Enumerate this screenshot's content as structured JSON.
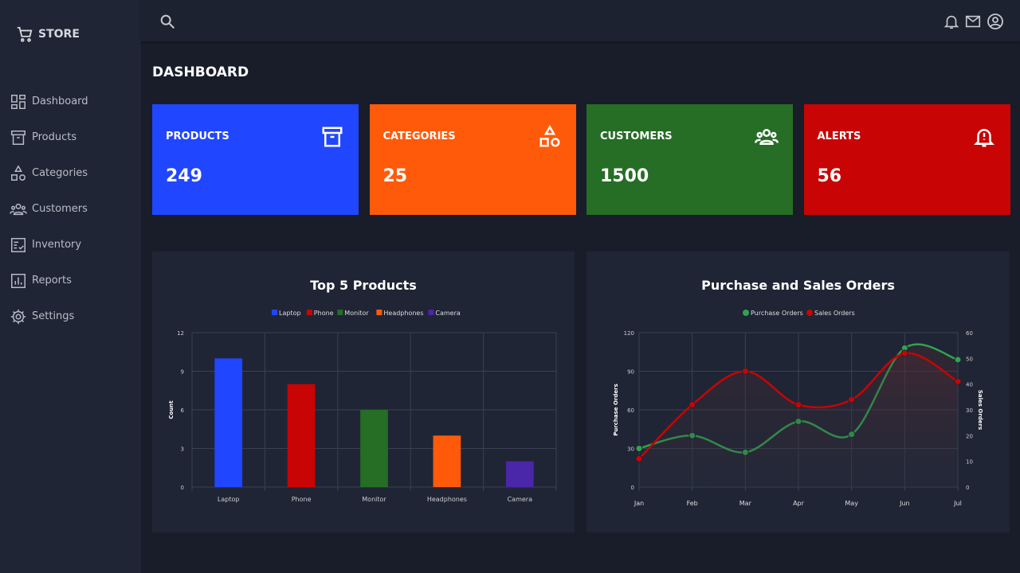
{
  "brand": {
    "name": "STORE",
    "icon": "cart-icon"
  },
  "sidebar": {
    "items": [
      {
        "label": "Dashboard",
        "icon": "dashboard-icon"
      },
      {
        "label": "Products",
        "icon": "archive-icon"
      },
      {
        "label": "Categories",
        "icon": "shapes-icon"
      },
      {
        "label": "Customers",
        "icon": "people-icon"
      },
      {
        "label": "Inventory",
        "icon": "checklist-icon"
      },
      {
        "label": "Reports",
        "icon": "bar-chart-icon"
      },
      {
        "label": "Settings",
        "icon": "gear-icon"
      }
    ]
  },
  "header": {
    "title": "DASHBOARD"
  },
  "cards": [
    {
      "label": "PRODUCTS",
      "value": "249",
      "color": "#2146ff",
      "icon": "archive-icon"
    },
    {
      "label": "CATEGORIES",
      "value": "25",
      "color": "#ff5a0a",
      "icon": "shapes-icon"
    },
    {
      "label": "CUSTOMERS",
      "value": "1500",
      "color": "#266d26",
      "icon": "people-icon"
    },
    {
      "label": "ALERTS",
      "value": "56",
      "color": "#c80404",
      "icon": "bell-alert-icon"
    }
  ],
  "chart_data": [
    {
      "type": "bar",
      "title": "Top 5 Products",
      "ylabel": "Count",
      "categories": [
        "Laptop",
        "Phone",
        "Monitor",
        "Headphones",
        "Camera"
      ],
      "values": [
        10,
        8,
        6,
        4,
        2
      ],
      "colors": [
        "#2146ff",
        "#c80404",
        "#266d26",
        "#ff5a0a",
        "#4a26a8"
      ],
      "ylim": [
        0,
        12
      ],
      "yticks": [
        0,
        3,
        6,
        9,
        12
      ],
      "legend": "top",
      "grid": true
    },
    {
      "type": "line",
      "title": "Purchase and Sales Orders",
      "categories": [
        "Jan",
        "Feb",
        "Mar",
        "Apr",
        "May",
        "Jun",
        "Jul"
      ],
      "series": [
        {
          "name": "Purchase Orders",
          "values": [
            30,
            40,
            27,
            51,
            41,
            108,
            99
          ],
          "color": "#2ea44f",
          "axis": "left"
        },
        {
          "name": "Sales Orders",
          "values": [
            11,
            32,
            45,
            32,
            34,
            52,
            41
          ],
          "color": "#c80404",
          "axis": "right"
        }
      ],
      "ylabel": "Purchase Orders",
      "y2label": "Sales Orders",
      "ylim": [
        0,
        120
      ],
      "yticks": [
        0,
        30,
        60,
        90,
        120
      ],
      "y2lim": [
        0,
        60
      ],
      "y2ticks": [
        0,
        10,
        20,
        30,
        40,
        50,
        60
      ],
      "legend": "top",
      "grid": true
    }
  ]
}
